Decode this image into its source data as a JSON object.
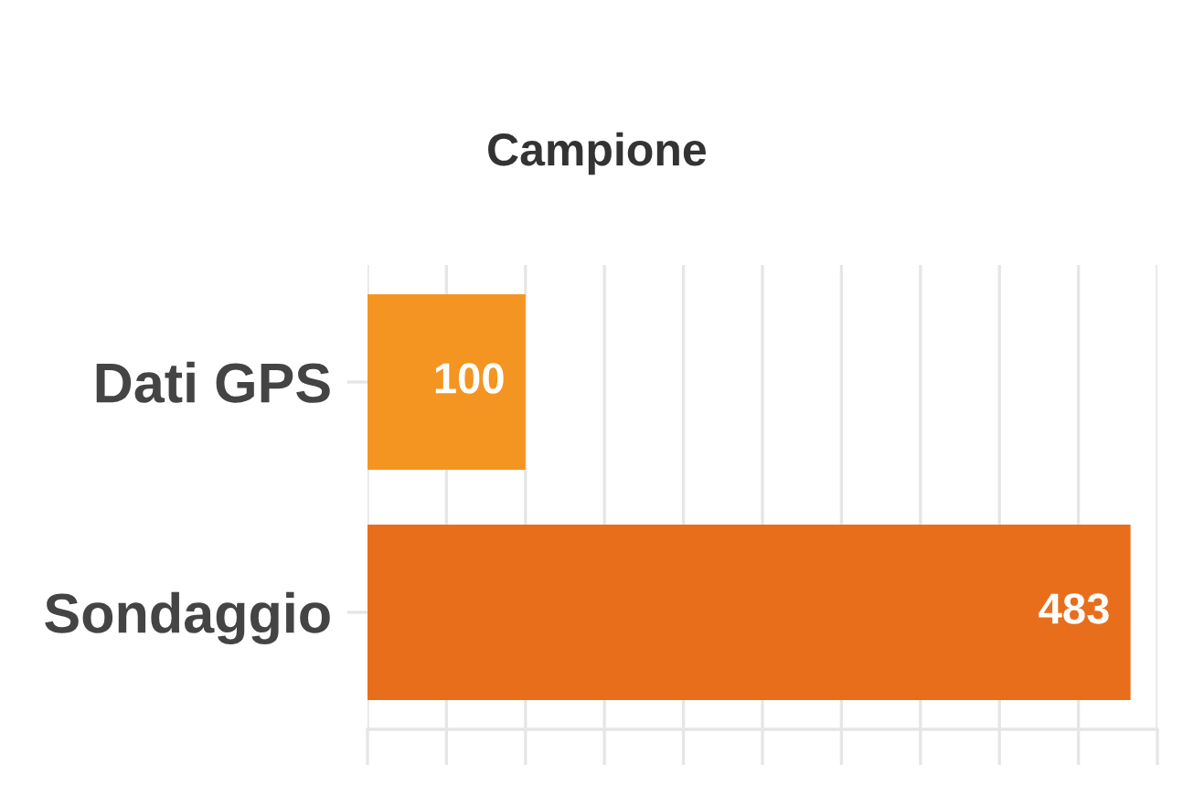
{
  "chart_data": {
    "type": "bar",
    "orientation": "horizontal",
    "title": "Campione",
    "categories": [
      "Dati GPS",
      "Sondaggio"
    ],
    "values": [
      100,
      483
    ],
    "colors": [
      "#f39520",
      "#e96e1c"
    ],
    "xlim": [
      0,
      500
    ],
    "xticks": [
      {
        "value": 0,
        "label": null
      },
      {
        "value": 50,
        "label": null
      },
      {
        "value": 100,
        "label": null
      },
      {
        "value": 150,
        "label": null
      },
      {
        "value": 200,
        "label": null
      },
      {
        "value": 250,
        "label": null
      },
      {
        "value": 300,
        "label": null
      },
      {
        "value": 350,
        "label": null
      },
      {
        "value": 400,
        "label": null
      },
      {
        "value": 450,
        "label": null
      },
      {
        "value": 500,
        "label": null
      }
    ],
    "grid": "x",
    "tick_labels": "y",
    "data_labels": true
  }
}
